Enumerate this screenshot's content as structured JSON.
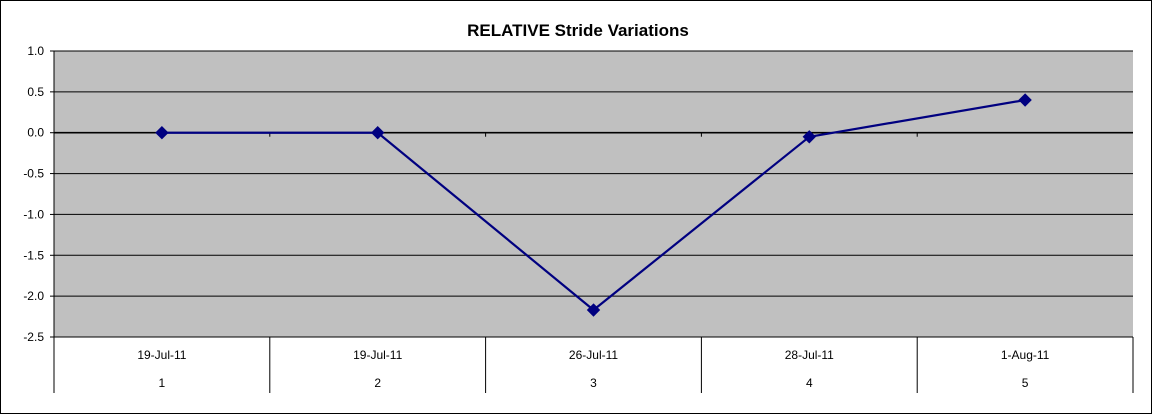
{
  "chart_data": {
    "type": "line",
    "title": "RELATIVE Stride Variations",
    "xlabel": "",
    "ylabel": "",
    "categories": [
      "1",
      "2",
      "3",
      "4",
      "5"
    ],
    "category_dates": [
      "19-Jul-11",
      "19-Jul-11",
      "26-Jul-11",
      "28-Jul-11",
      "1-Aug-11"
    ],
    "series": [
      {
        "values": [
          0.0,
          0.0,
          -2.17,
          -0.05,
          0.4
        ]
      }
    ],
    "ylim": [
      -2.5,
      1.0
    ],
    "yticks": [
      "1.0",
      "0.5",
      "0.0",
      "-0.5",
      "-1.0",
      "-1.5",
      "-2.0",
      "-2.5"
    ],
    "grid": "horizontal",
    "legend": "none",
    "colors": {
      "plot_background": "#c0c0c0",
      "series_line": "#000080",
      "marker": "#000080",
      "gridline": "#000000"
    },
    "marker": "diamond"
  }
}
